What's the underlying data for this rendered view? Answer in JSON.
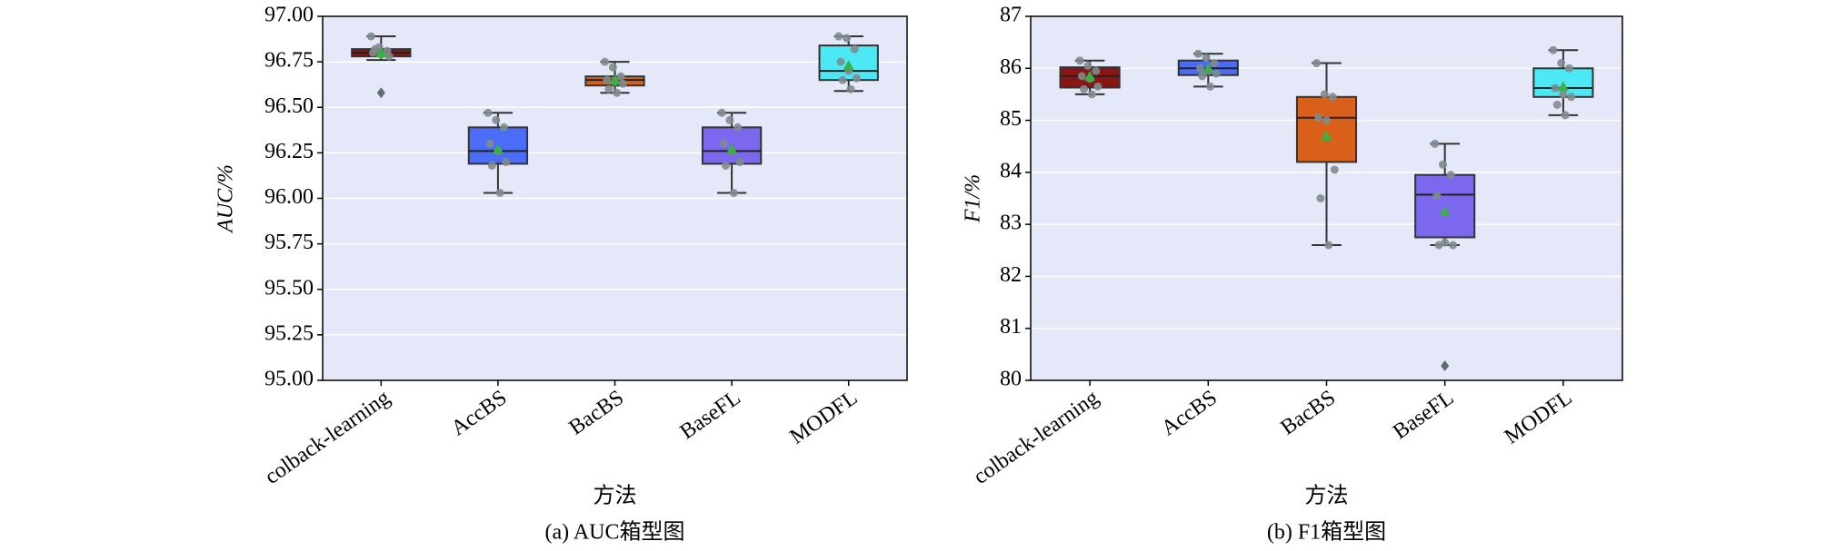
{
  "chart_data": [
    {
      "type": "box",
      "y_label": "AUC/%",
      "x_label": "方法",
      "caption": "(a) AUC箱型图",
      "ylim": [
        95,
        97
      ],
      "yticks": [
        {
          "value": 95,
          "label": "95.00"
        },
        {
          "value": 95.25,
          "label": "95.25"
        },
        {
          "value": 95.5,
          "label": "95.50"
        },
        {
          "value": 95.75,
          "label": "95.75"
        },
        {
          "value": 96,
          "label": "96.00"
        },
        {
          "value": 96.25,
          "label": "96.25"
        },
        {
          "value": 96.5,
          "label": "96.50"
        },
        {
          "value": 96.75,
          "label": "96.75"
        },
        {
          "value": 97,
          "label": "97.00"
        }
      ],
      "grid": true,
      "series": [
        {
          "name": "colback-learning",
          "color": "#8b1414",
          "whisker_low": 96.76,
          "q1": 96.78,
          "median": 96.8,
          "q3": 96.82,
          "whisker_high": 96.89,
          "mean": 96.8,
          "outliers": [
            96.58
          ],
          "points": [
            96.89,
            96.83,
            96.81,
            96.8,
            96.79,
            96.78,
            96.82
          ]
        },
        {
          "name": "AccBS",
          "color": "#4a6cf7",
          "whisker_low": 96.03,
          "q1": 96.19,
          "median": 96.26,
          "q3": 96.39,
          "whisker_high": 96.47,
          "mean": 96.27,
          "outliers": [],
          "points": [
            96.47,
            96.43,
            96.39,
            96.3,
            96.26,
            96.2,
            96.18,
            96.03
          ]
        },
        {
          "name": "BacBS",
          "color": "#d9601a",
          "whisker_low": 96.58,
          "q1": 96.62,
          "median": 96.65,
          "q3": 96.67,
          "whisker_high": 96.75,
          "mean": 96.65,
          "outliers": [],
          "points": [
            96.75,
            96.72,
            96.67,
            96.65,
            96.64,
            96.63,
            96.6,
            96.58
          ]
        },
        {
          "name": "BaseFL",
          "color": "#7b68ee",
          "whisker_low": 96.03,
          "q1": 96.19,
          "median": 96.26,
          "q3": 96.39,
          "whisker_high": 96.47,
          "mean": 96.27,
          "outliers": [],
          "points": [
            96.47,
            96.43,
            96.39,
            96.3,
            96.26,
            96.2,
            96.18,
            96.03
          ]
        },
        {
          "name": "MODFL",
          "color": "#4de8f5",
          "whisker_low": 96.59,
          "q1": 96.65,
          "median": 96.7,
          "q3": 96.84,
          "whisker_high": 96.89,
          "mean": 96.73,
          "outliers": [],
          "points": [
            96.89,
            96.88,
            96.82,
            96.75,
            96.7,
            96.66,
            96.65,
            96.6
          ]
        }
      ]
    },
    {
      "type": "box",
      "y_label": "F1/%",
      "x_label": "方法",
      "caption": "(b) F1箱型图",
      "ylim": [
        80,
        87
      ],
      "yticks": [
        80,
        81,
        82,
        83,
        84,
        85,
        86,
        87
      ],
      "grid": true,
      "series": [
        {
          "name": "colback-learning",
          "color": "#8b1414",
          "whisker_low": 85.5,
          "q1": 85.63,
          "median": 85.85,
          "q3": 86.02,
          "whisker_high": 86.15,
          "mean": 85.85,
          "outliers": [],
          "points": [
            86.15,
            86.05,
            85.95,
            85.85,
            85.8,
            85.65,
            85.6,
            85.5
          ]
        },
        {
          "name": "AccBS",
          "color": "#4a6cf7",
          "whisker_low": 85.65,
          "q1": 85.87,
          "median": 86.0,
          "q3": 86.15,
          "whisker_high": 86.28,
          "mean": 86.0,
          "outliers": [],
          "points": [
            86.28,
            86.2,
            86.1,
            86.0,
            85.95,
            85.9,
            85.85,
            85.65
          ]
        },
        {
          "name": "BacBS",
          "color": "#d9601a",
          "whisker_low": 82.6,
          "q1": 84.2,
          "median": 85.05,
          "q3": 85.45,
          "whisker_high": 86.1,
          "mean": 84.7,
          "outliers": [],
          "points": [
            86.1,
            85.5,
            85.45,
            85.05,
            85.0,
            84.05,
            83.5,
            82.6
          ]
        },
        {
          "name": "BaseFL",
          "color": "#7b68ee",
          "whisker_low": 82.6,
          "q1": 82.75,
          "median": 83.57,
          "q3": 83.95,
          "whisker_high": 84.55,
          "mean": 83.25,
          "outliers": [
            80.28
          ],
          "points": [
            84.55,
            84.15,
            83.95,
            83.55,
            82.65,
            82.6,
            82.6
          ]
        },
        {
          "name": "MODFL",
          "color": "#4de8f5",
          "whisker_low": 85.1,
          "q1": 85.45,
          "median": 85.62,
          "q3": 86.0,
          "whisker_high": 86.35,
          "mean": 85.65,
          "outliers": [],
          "points": [
            86.35,
            86.1,
            86.0,
            85.62,
            85.5,
            85.45,
            85.3,
            85.1
          ]
        }
      ]
    }
  ]
}
